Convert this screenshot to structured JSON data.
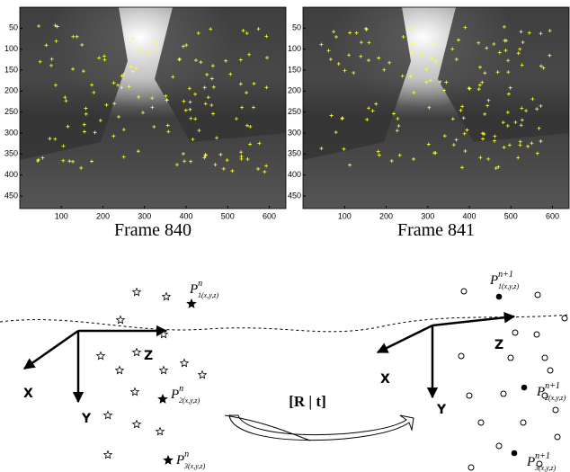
{
  "panels": [
    {
      "caption": "Frame 840",
      "xlim": [
        0,
        640
      ],
      "ylim": [
        0,
        480
      ],
      "xticks": [
        100,
        200,
        300,
        400,
        500,
        600
      ],
      "yticks": [
        50,
        100,
        150,
        200,
        250,
        300,
        350,
        400,
        450
      ]
    },
    {
      "caption": "Frame 841",
      "xlim": [
        0,
        640
      ],
      "ylim": [
        0,
        480
      ],
      "xticks": [
        100,
        200,
        300,
        400,
        500,
        600
      ],
      "yticks": [
        50,
        100,
        150,
        200,
        250,
        300,
        350,
        400,
        450
      ]
    }
  ],
  "diagram": {
    "left_axes": {
      "x": "X",
      "y": "Y",
      "z": "Z"
    },
    "right_axes": {
      "x": "X",
      "y": "Y",
      "z": "Z"
    },
    "transform": "[R | t]",
    "left_points": [
      {
        "base": "P",
        "sup": "n",
        "sub": "1(x,y,z)"
      },
      {
        "base": "P",
        "sup": "n",
        "sub": "2(x,y,z)"
      },
      {
        "base": "P",
        "sup": "n",
        "sub": "3(x,y,z)"
      }
    ],
    "right_points": [
      {
        "base": "P",
        "sup": "n+1",
        "sub": "1(x,y,z)"
      },
      {
        "base": "P",
        "sup": "n+1",
        "sub": "2(x,y,z)"
      },
      {
        "base": "P",
        "sup": "n+1",
        "sub": "3(x,y,z)"
      }
    ]
  }
}
